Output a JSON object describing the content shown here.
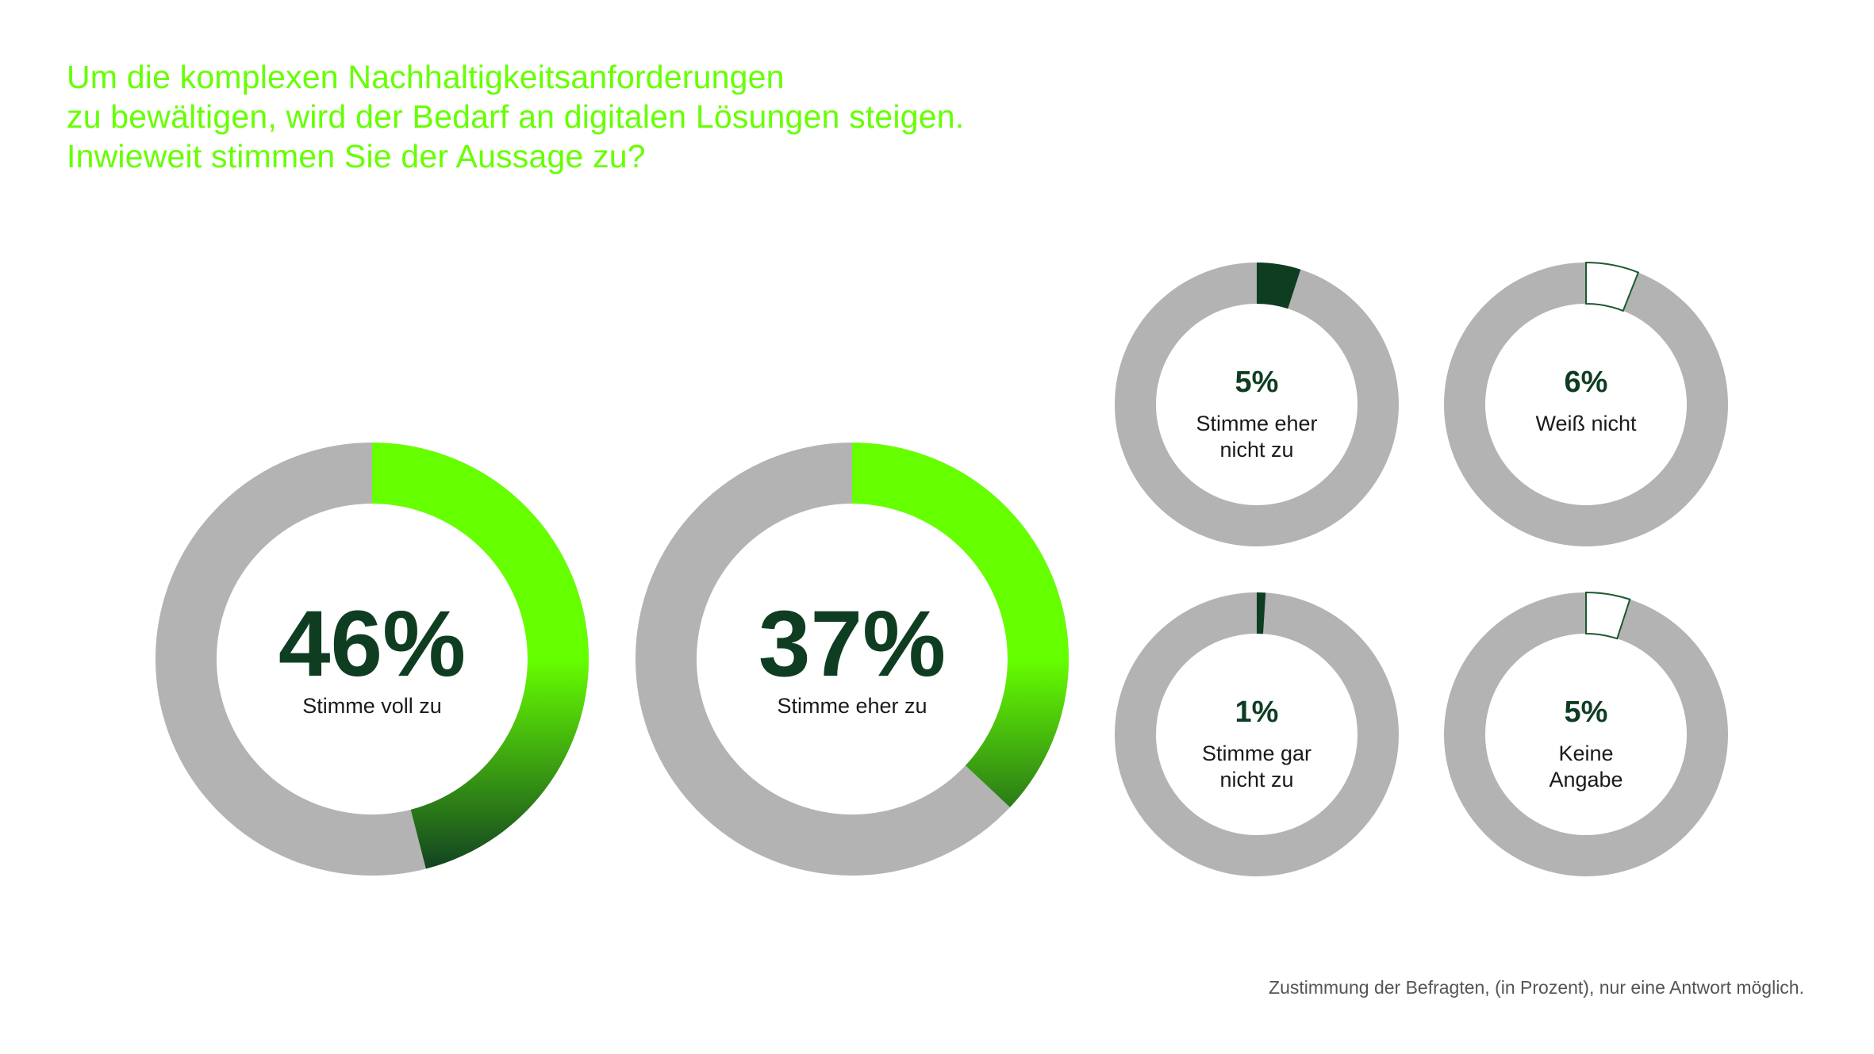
{
  "title_lines": [
    "Um die komplexen Nachhaltigkeitsanforderungen",
    "zu bewältigen, wird der Bedarf an digitalen Lösungen steigen.",
    "Inwieweit stimmen Sie der Aussage zu?"
  ],
  "footnote": "Zustimmung der Befragten, (in Prozent), nur eine Antwort möglich.",
  "colors": {
    "title": "#66ff00",
    "track": "#b3b3b3",
    "bright_green": "#66ff00",
    "dark_green": "#0f3d22",
    "outline_green": "#1a5a30",
    "value_text": "#0f3d22",
    "label_text": "#1a1a1a",
    "footnote": "#555555"
  },
  "chart_data": {
    "type": "pie",
    "style": "donut",
    "unit": "%",
    "items": [
      {
        "value": 46,
        "value_label": "46%",
        "label_lines": [
          "Stimme voll zu"
        ],
        "fill": "gradient"
      },
      {
        "value": 37,
        "value_label": "37%",
        "label_lines": [
          "Stimme eher zu"
        ],
        "fill": "gradient"
      },
      {
        "value": 5,
        "value_label": "5%",
        "label_lines": [
          "Stimme eher",
          "nicht zu"
        ],
        "fill": "dark"
      },
      {
        "value": 6,
        "value_label": "6%",
        "label_lines": [
          "Weiß nicht"
        ],
        "fill": "outline"
      },
      {
        "value": 1,
        "value_label": "1%",
        "label_lines": [
          "Stimme gar",
          "nicht zu"
        ],
        "fill": "dark"
      },
      {
        "value": 5,
        "value_label": "5%",
        "label_lines": [
          "Keine",
          "Angabe"
        ],
        "fill": "outline"
      }
    ]
  }
}
